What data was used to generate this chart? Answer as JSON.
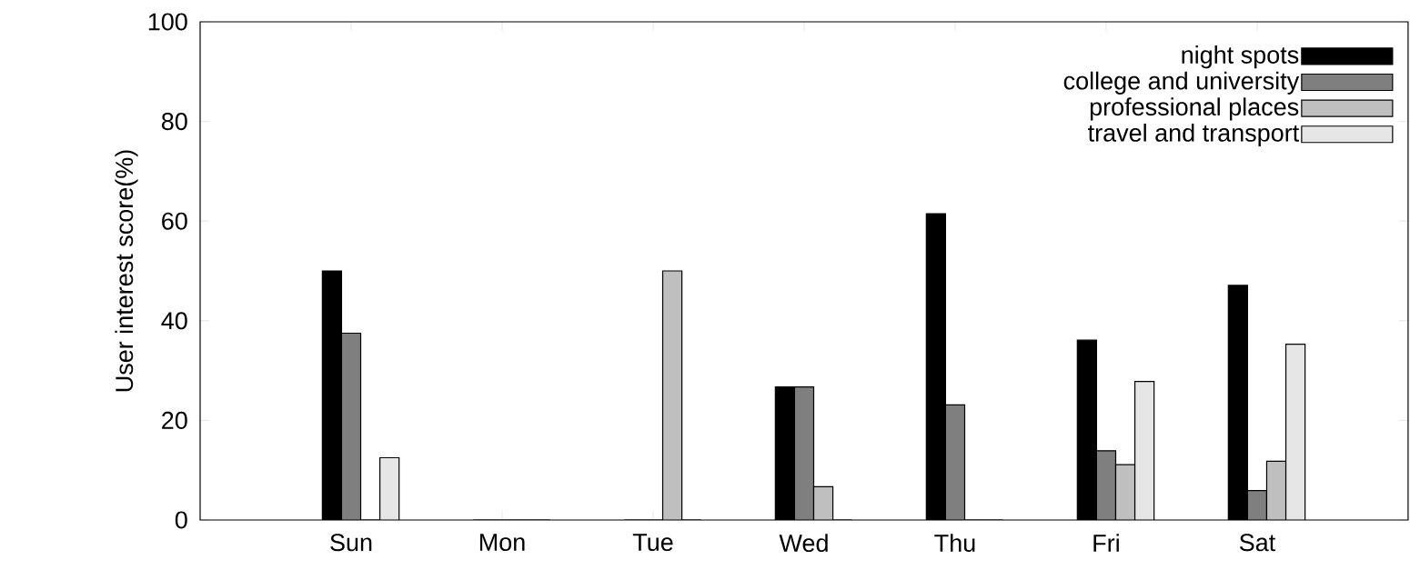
{
  "chart_data": {
    "type": "bar",
    "ylabel": "User interest score(%)",
    "categories": [
      "Sun",
      "Mon",
      "Tue",
      "Wed",
      "Thu",
      "Fri",
      "Sat"
    ],
    "series": [
      {
        "name": "night spots",
        "color": "#000000",
        "values": [
          50,
          0,
          0,
          26.7,
          61.5,
          36.1,
          47.1
        ]
      },
      {
        "name": "college and university",
        "color": "#7f7f7f",
        "values": [
          37.5,
          0,
          0,
          26.7,
          23.1,
          13.9,
          5.9
        ]
      },
      {
        "name": "professional places",
        "color": "#bfbfbf",
        "values": [
          0,
          0,
          50,
          6.7,
          0,
          11.1,
          11.8
        ]
      },
      {
        "name": "travel and transport",
        "color": "#e6e6e6",
        "values": [
          12.5,
          0,
          0,
          0,
          0,
          27.8,
          35.3
        ]
      }
    ],
    "ylim": [
      0,
      100
    ],
    "yticks": [
      0,
      20,
      40,
      60,
      80,
      100
    ],
    "legend": "top right",
    "grid": false
  }
}
